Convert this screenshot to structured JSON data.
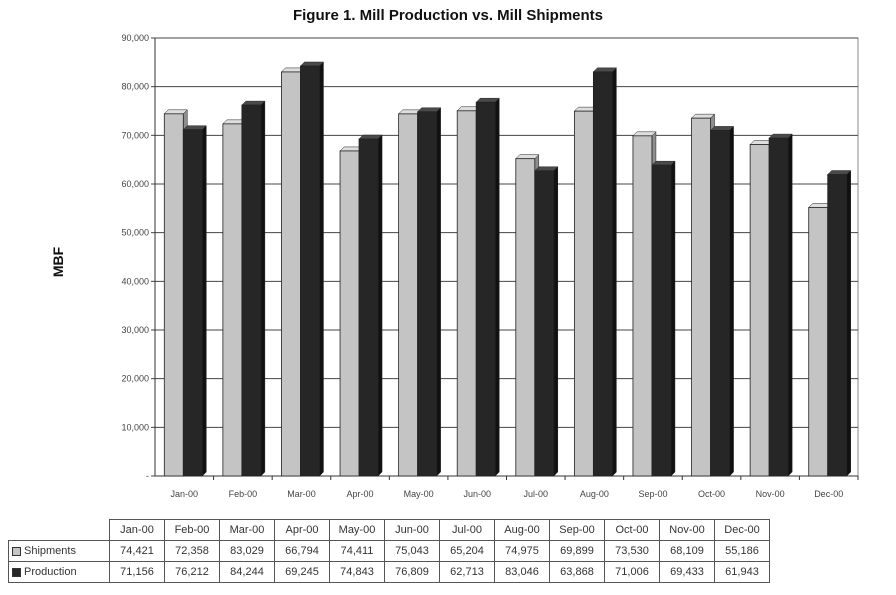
{
  "chart_data": {
    "type": "bar",
    "title": "Figure 1. Mill Production vs. Mill Shipments",
    "xlabel": "",
    "ylabel": "MBF",
    "ylim": [
      0,
      90000
    ],
    "yticks": [
      "-",
      "10,000",
      "20,000",
      "30,000",
      "40,000",
      "50,000",
      "60,000",
      "70,000",
      "80,000",
      "90,000"
    ],
    "grid": true,
    "categories": [
      "Jan-00",
      "Feb-00",
      "Mar-00",
      "Apr-00",
      "May-00",
      "Jun-00",
      "Jul-00",
      "Aug-00",
      "Sep-00",
      "Oct-00",
      "Nov-00",
      "Dec-00"
    ],
    "series": [
      {
        "name": "Shipments",
        "color": "#c4c4c4",
        "values": [
          74421,
          72358,
          83029,
          66794,
          74411,
          75043,
          65204,
          74975,
          69899,
          73530,
          68109,
          55186
        ],
        "labels": [
          "74,421",
          "72,358",
          "83,029",
          "66,794",
          "74,411",
          "75,043",
          "65,204",
          "74,975",
          "69,899",
          "73,530",
          "68,109",
          "55,186"
        ]
      },
      {
        "name": "Production",
        "color": "#262626",
        "values": [
          71156,
          76212,
          84244,
          69245,
          74843,
          76809,
          62713,
          83046,
          63868,
          71006,
          69433,
          61943
        ],
        "labels": [
          "71,156",
          "76,212",
          "84,244",
          "69,245",
          "74,843",
          "76,809",
          "62,713",
          "83,046",
          "63,868",
          "71,006",
          "69,433",
          "61,943"
        ]
      }
    ]
  }
}
